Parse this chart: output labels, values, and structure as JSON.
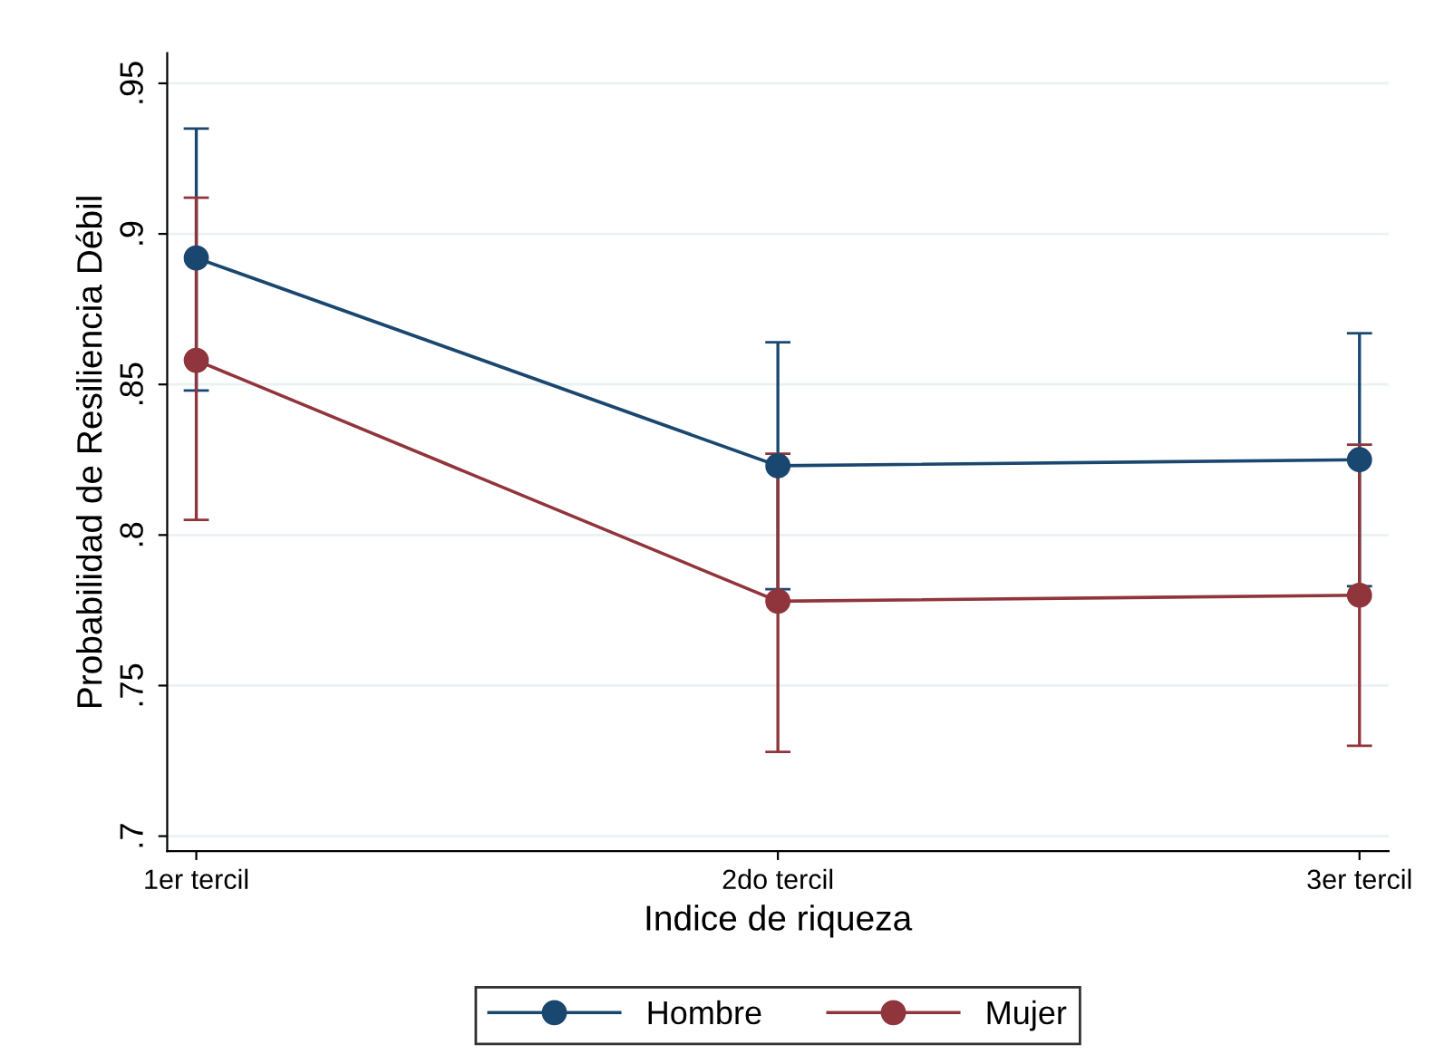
{
  "chart_data": {
    "type": "line",
    "xlabel": "Indice de riqueza",
    "ylabel": "Probabilidad de Resiliencia Débil",
    "categories": [
      "1er tercil",
      "2do tercil",
      "3er tercil"
    ],
    "series": [
      {
        "name": "Hombre",
        "color": "#1a476f",
        "values": [
          0.892,
          0.823,
          0.825
        ],
        "errors": [
          [
            0.848,
            0.935
          ],
          [
            0.782,
            0.864
          ],
          [
            0.783,
            0.867
          ]
        ]
      },
      {
        "name": "Mujer",
        "color": "#90353b",
        "values": [
          0.858,
          0.778,
          0.78
        ],
        "errors": [
          [
            0.805,
            0.912
          ],
          [
            0.728,
            0.827
          ],
          [
            0.73,
            0.83
          ]
        ]
      }
    ],
    "ylim": [
      0.695,
      0.96
    ],
    "yticks": [
      {
        "value": 0.7,
        "label": ".7"
      },
      {
        "value": 0.75,
        "label": ".75"
      },
      {
        "value": 0.8,
        "label": ".8"
      },
      {
        "value": 0.85,
        "label": ".85"
      },
      {
        "value": 0.9,
        "label": ".9"
      },
      {
        "value": 0.95,
        "label": ".95"
      }
    ],
    "grid": "y",
    "legend": "bottom",
    "marker": "circle",
    "line_style": "solid"
  }
}
